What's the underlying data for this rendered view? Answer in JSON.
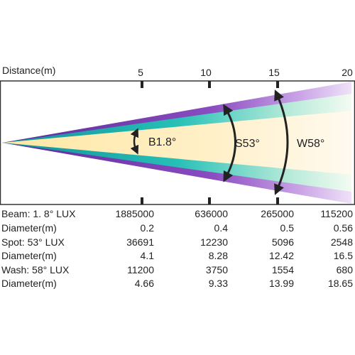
{
  "axis": {
    "title": "Distance(m)",
    "ticks": [
      "5",
      "10",
      "15",
      "20"
    ]
  },
  "beams": {
    "beam": "B1.8°",
    "spot": "S53°",
    "wash": "W58°"
  },
  "colors": {
    "purple": "#7a3fa8",
    "teal": "#1ab8b0",
    "cream": "#fff1c8",
    "frame": "#333333"
  },
  "table": {
    "rows": [
      {
        "label": "Beam: 1. 8° LUX",
        "values": [
          "1885000",
          "636000",
          "265000",
          "115200"
        ]
      },
      {
        "label": "Diameter(m)",
        "values": [
          "0.2",
          "0.4",
          "0.5",
          "0.56"
        ]
      },
      {
        "label": "Spot: 53° LUX",
        "values": [
          "36691",
          "12230",
          "5096",
          "2548"
        ]
      },
      {
        "label": "Diameter(m)",
        "values": [
          "4.1",
          "8.28",
          "12.42",
          "16.5"
        ]
      },
      {
        "label": "Wash: 58° LUX",
        "values": [
          "11200",
          "3750",
          "1554",
          "680"
        ]
      },
      {
        "label": "Diameter(m)",
        "values": [
          "4.66",
          "9.33",
          "13.99",
          "18.65"
        ]
      }
    ]
  }
}
